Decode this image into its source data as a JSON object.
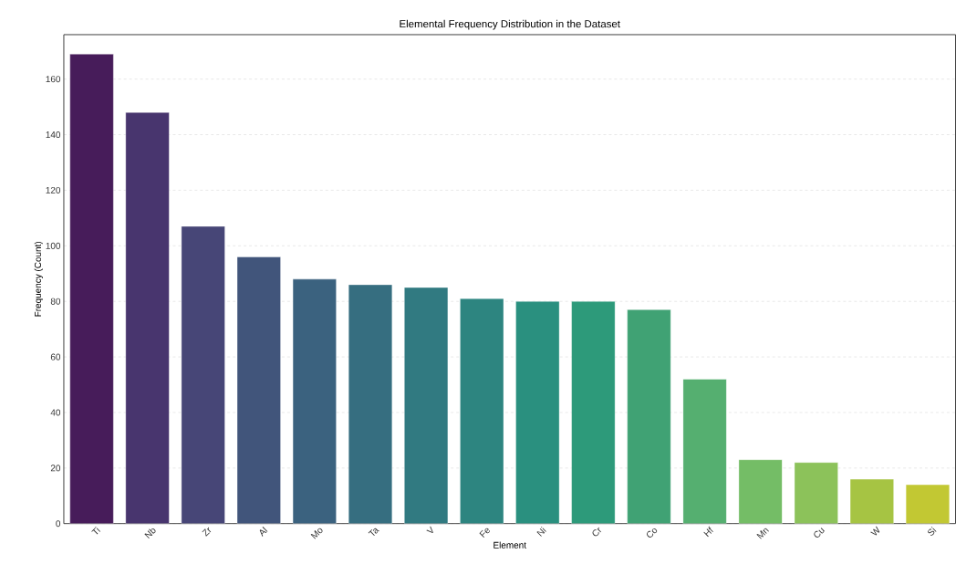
{
  "chart_data": {
    "type": "bar",
    "title": "Elemental Frequency Distribution in the Dataset",
    "xlabel": "Element",
    "ylabel": "Frequency (Count)",
    "categories": [
      "Ti",
      "Nb",
      "Zr",
      "Al",
      "Mo",
      "Ta",
      "V",
      "Fe",
      "Ni",
      "Cr",
      "Co",
      "Hf",
      "Mn",
      "Cu",
      "W",
      "Si"
    ],
    "values": [
      169,
      148,
      107,
      96,
      88,
      86,
      85,
      81,
      80,
      80,
      77,
      52,
      23,
      22,
      16,
      14
    ],
    "colors": [
      "#471c5a",
      "#48356e",
      "#474677",
      "#41557b",
      "#3b627f",
      "#366e80",
      "#317a81",
      "#2d8580",
      "#2a907f",
      "#2d9a7a",
      "#40a274",
      "#55af70",
      "#74bd66",
      "#8cc25a",
      "#a6c443",
      "#c2c833"
    ],
    "ylim": [
      0,
      176
    ],
    "yticks": [
      0,
      20,
      40,
      60,
      80,
      100,
      120,
      140,
      160
    ],
    "grid": "y"
  }
}
